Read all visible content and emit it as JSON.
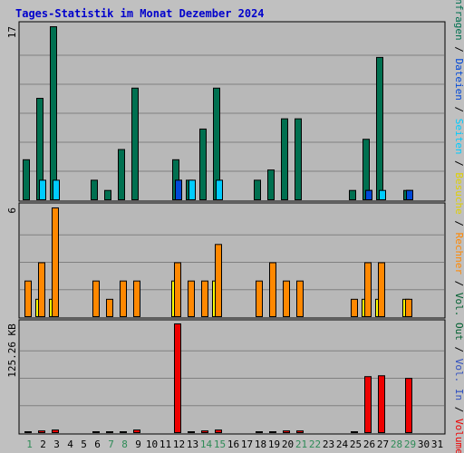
{
  "chart_data": {
    "type": "bar",
    "title": "Tages-Statistik im Monat Dezember 2024",
    "days": [
      "1",
      "2",
      "3",
      "4",
      "5",
      "6",
      "7",
      "8",
      "9",
      "10",
      "11",
      "12",
      "13",
      "14",
      "15",
      "16",
      "17",
      "18",
      "19",
      "20",
      "21",
      "22",
      "23",
      "24",
      "25",
      "26",
      "27",
      "28",
      "29",
      "30",
      "31"
    ],
    "weekend_days": [
      "1",
      "7",
      "8",
      "14",
      "15",
      "21",
      "22",
      "28",
      "29"
    ],
    "colors": {
      "background": "#c0c0c0",
      "plot": "#b8b8b8",
      "title": "#0000cc",
      "weekday_label": "#000000",
      "weekend_label": "#2e8b57",
      "gridline": "#808080",
      "anfragen": "#007050",
      "dateien": "#00ccff",
      "seiten": "#0048d8",
      "besuche": "#ffff00",
      "rechner": "#ff8800",
      "volumen": "#ee0000",
      "vol_out": "#006030",
      "vol_in": "#3050c0"
    },
    "panels": [
      {
        "name": "requests",
        "ymax_label": "17",
        "ymax": 17,
        "series": [
          {
            "name": "Anfragen",
            "values": [
              4,
              10,
              17,
              0,
              0,
              2,
              1,
              5,
              11,
              0,
              0,
              4,
              2,
              7,
              11,
              0,
              0,
              2,
              3,
              8,
              8,
              0,
              0,
              0,
              1,
              6,
              14,
              0,
              1,
              0,
              0
            ]
          },
          {
            "name": "Dateien",
            "values": [
              0,
              2,
              2,
              0,
              0,
              0,
              0,
              0,
              0,
              0,
              0,
              2,
              2,
              0,
              2,
              0,
              0,
              0,
              0,
              0,
              0,
              0,
              0,
              0,
              0,
              1,
              1,
              0,
              1,
              0,
              0
            ]
          },
          {
            "name": "Seiten",
            "values": [
              0,
              0,
              0,
              0,
              0,
              0,
              0,
              0,
              0,
              0,
              0,
              2,
              0,
              0,
              0,
              0,
              0,
              0,
              0,
              0,
              0,
              0,
              0,
              0,
              0,
              1,
              0,
              0,
              1,
              0,
              0
            ]
          }
        ]
      },
      {
        "name": "visits",
        "ymax_label": "6",
        "ymax": 6,
        "series": [
          {
            "name": "Besuche",
            "values": [
              0,
              1,
              1,
              0,
              0,
              0,
              0,
              0,
              0,
              0,
              0,
              2,
              0,
              0,
              2,
              0,
              0,
              0,
              0,
              0,
              0,
              0,
              0,
              0,
              0,
              1,
              1,
              0,
              1,
              0,
              0
            ]
          },
          {
            "name": "Rechner",
            "values": [
              2,
              3,
              6,
              0,
              0,
              2,
              1,
              2,
              2,
              0,
              0,
              3,
              2,
              2,
              4,
              0,
              0,
              2,
              3,
              2,
              2,
              0,
              0,
              0,
              1,
              3,
              3,
              0,
              1,
              0,
              0
            ]
          }
        ]
      },
      {
        "name": "volume",
        "ymax_label": "125.26 KB",
        "ymax": 125.26,
        "series": [
          {
            "name": "Volumen",
            "values": [
              1.5,
              3,
              4,
              0,
              0,
              1.5,
              1.5,
              1.5,
              4,
              0,
              0,
              125.26,
              1.5,
              3,
              4,
              0,
              0,
              1.5,
              1.5,
              3,
              3,
              0,
              0,
              0,
              1.5,
              65,
              66,
              0,
              63,
              0,
              0
            ]
          }
        ]
      }
    ],
    "right_legend": [
      {
        "text": "Anfragen",
        "color": "#007050"
      },
      {
        "text": " / ",
        "color": "#000000"
      },
      {
        "text": "Dateien",
        "color": "#0048d8"
      },
      {
        "text": " / ",
        "color": "#000000"
      },
      {
        "text": "Seiten",
        "color": "#00ccff"
      },
      {
        "text": " / ",
        "color": "#000000"
      },
      {
        "text": "Besuche",
        "color": "#e0d000"
      },
      {
        "text": " / ",
        "color": "#000000"
      },
      {
        "text": "Rechner",
        "color": "#ff8800"
      },
      {
        "text": " / ",
        "color": "#000000"
      },
      {
        "text": "Vol. Out",
        "color": "#006030"
      },
      {
        "text": " / ",
        "color": "#000000"
      },
      {
        "text": "Vol. In",
        "color": "#3050c0"
      },
      {
        "text": " / ",
        "color": "#000000"
      },
      {
        "text": "Volumen",
        "color": "#ee0000"
      }
    ]
  }
}
